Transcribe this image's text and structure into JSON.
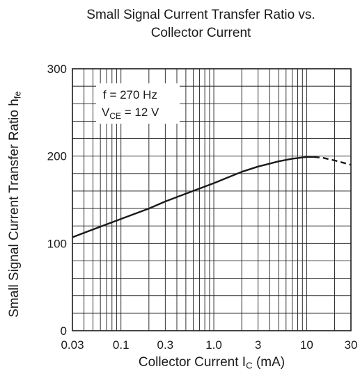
{
  "chart_data": {
    "type": "line",
    "title_line1": "Small Signal Current Transfer Ratio vs.",
    "title_line2": "Collector Current",
    "xlabel": {
      "main": "Collector Current  I",
      "sub": "C",
      "unit": "  (mA)"
    },
    "ylabel": {
      "main": "Small Signal Current Transfer Ratio  h",
      "sub": "fe"
    },
    "x_scale": "log",
    "xlim": [
      0.03,
      30
    ],
    "ylim": [
      0,
      300
    ],
    "grid": true,
    "x_ticks": [
      {
        "value": 0.03,
        "label": "0.03"
      },
      {
        "value": 0.1,
        "label": "0.1"
      },
      {
        "value": 0.3,
        "label": "0.3"
      },
      {
        "value": 1.0,
        "label": "1.0"
      },
      {
        "value": 3,
        "label": "3"
      },
      {
        "value": 10,
        "label": "10"
      },
      {
        "value": 30,
        "label": "30"
      }
    ],
    "y_ticks": [
      {
        "value": 0,
        "label": "0"
      },
      {
        "value": 100,
        "label": "100"
      },
      {
        "value": 200,
        "label": "200"
      },
      {
        "value": 300,
        "label": "300"
      }
    ],
    "annotation": {
      "line1": "f = 270 Hz",
      "line2_main": "V",
      "line2_sub": "CE",
      "line2_rest": " = 12 V"
    },
    "series": [
      {
        "style": "solid",
        "x": [
          0.03,
          0.05,
          0.1,
          0.2,
          0.3,
          0.5,
          1.0,
          2.0,
          3.0,
          5.0,
          7.0,
          10.0,
          12.0
        ],
        "y": [
          107,
          116,
          128,
          140,
          148,
          157,
          169,
          182,
          188,
          194,
          197,
          199,
          199
        ]
      },
      {
        "style": "dashed",
        "x": [
          12.0,
          15.0,
          20.0,
          30.0
        ],
        "y": [
          199,
          198,
          195,
          190
        ]
      }
    ],
    "line_color": "#1a1a1a"
  }
}
